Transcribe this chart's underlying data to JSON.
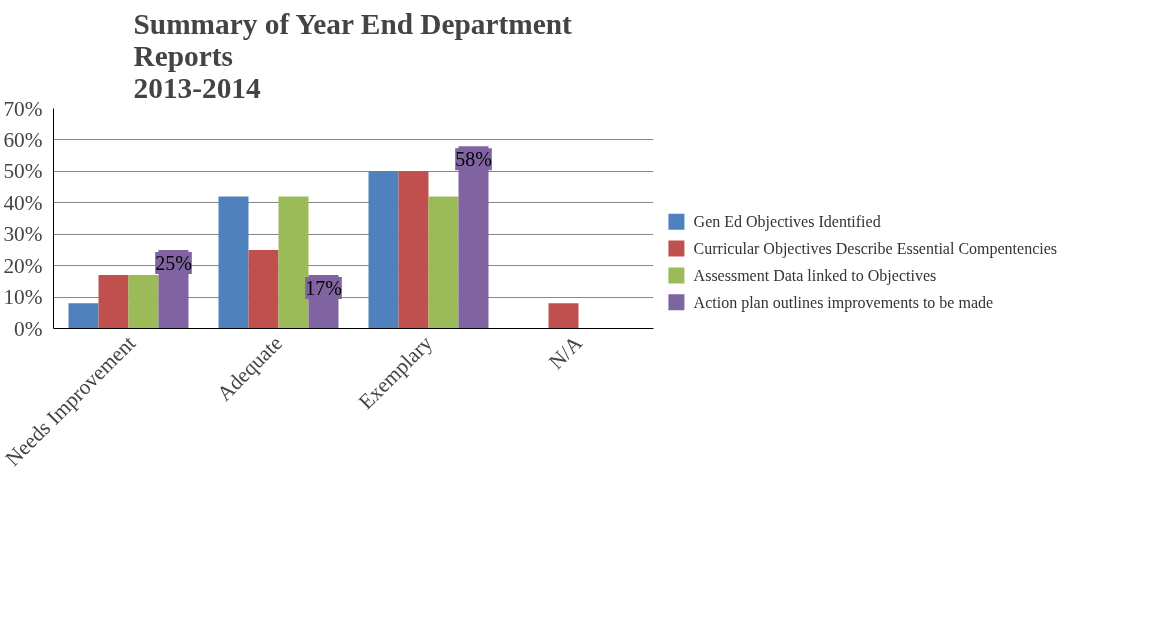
{
  "chart_data": {
    "type": "bar",
    "title": "Summary of Year End Department\nReports\n2013-2014",
    "categories": [
      "Needs Improvement",
      "Adequate",
      "Exemplary",
      "N/A"
    ],
    "series": [
      {
        "name": "Gen Ed Objectives Identified",
        "color": "#4f81bd",
        "values": [
          8,
          42,
          50,
          0
        ]
      },
      {
        "name": "Curricular Objectives Describe Essential Compentencies",
        "color": "#c0504d",
        "values": [
          17,
          25,
          50,
          8
        ]
      },
      {
        "name": "Assessment Data linked to Objectives",
        "color": "#9bbb59",
        "values": [
          17,
          42,
          42,
          0
        ]
      },
      {
        "name": "Action plan outlines improvements to be made",
        "color": "#8064a2",
        "values": [
          25,
          17,
          58,
          0
        ],
        "value_labels": [
          "25%",
          "17%",
          "58%",
          null
        ]
      }
    ],
    "ylim": [
      0,
      70
    ],
    "yticks": [
      {
        "value": 0,
        "label": "0%"
      },
      {
        "value": 10,
        "label": "10%"
      },
      {
        "value": 20,
        "label": "20%"
      },
      {
        "value": 30,
        "label": "30%"
      },
      {
        "value": 40,
        "label": "40%"
      },
      {
        "value": 50,
        "label": "50%"
      },
      {
        "value": 60,
        "label": "60%"
      },
      {
        "value": 70,
        "label": "70%"
      }
    ],
    "grid": "y",
    "legend": "right"
  }
}
